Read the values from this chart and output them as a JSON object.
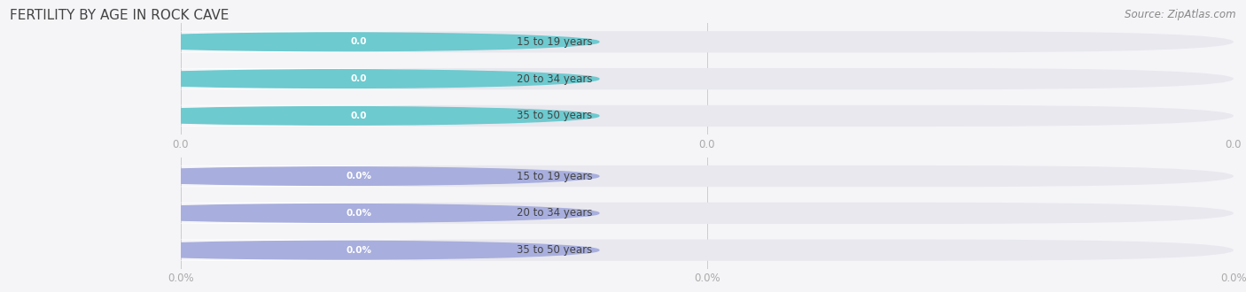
{
  "title": "FERTILITY BY AGE IN ROCK CAVE",
  "source": "Source: ZipAtlas.com",
  "top_group": {
    "labels": [
      "15 to 19 years",
      "20 to 34 years",
      "35 to 50 years"
    ],
    "values": [
      0.0,
      0.0,
      0.0
    ],
    "bar_color": "#6dcacf",
    "value_format": "0.0",
    "axis_label": "0.0"
  },
  "bottom_group": {
    "labels": [
      "15 to 19 years",
      "20 to 34 years",
      "35 to 50 years"
    ],
    "values": [
      0.0,
      0.0,
      0.0
    ],
    "bar_color": "#a8aedd",
    "value_format": "0.0%",
    "axis_label": "0.0%"
  },
  "bg_color": "#f5f5f8",
  "bar_track_color": "#e8e8ee",
  "bar_white_color": "#ffffff",
  "title_color": "#444444",
  "label_color": "#444444",
  "axis_color": "#aaaaaa",
  "source_color": "#888888",
  "fig_width": 14.06,
  "fig_height": 3.3,
  "dpi": 100
}
